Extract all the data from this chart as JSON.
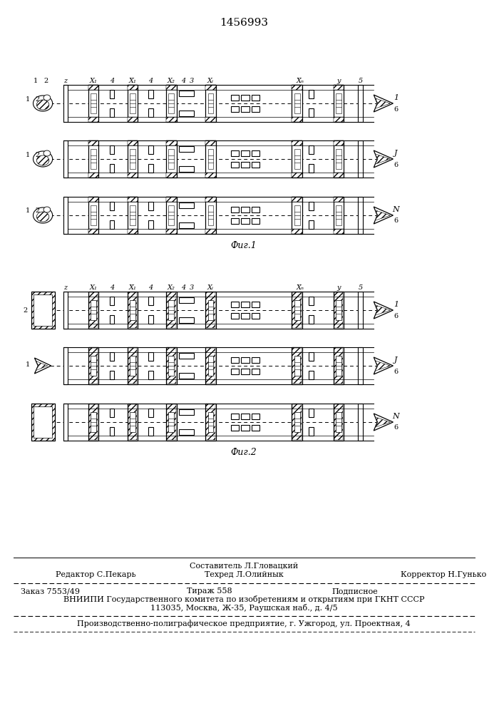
{
  "title": "1456993",
  "fig1_label": "Фиг.1",
  "fig2_label": "Фиг.2",
  "footer_col1_top": "Редактор С.Пекарь",
  "footer_col2_row1": "Составитель Л.Гловацкий",
  "footer_col2_row2": "Техред Л.Олийнык",
  "footer_col3_top": "Корректор Н.Гунько",
  "footer_order": "Заказ 7553/49",
  "footer_tirazh": "Тираж 558",
  "footer_podpis": "Подписное",
  "footer_vnipi": "ВНИИПИ Государственного комитета по изобретениям и открытиям при ГКНТ СССР",
  "footer_addr": "113035, Москва, Ж-35, Раушская наб., д. 4/5",
  "footer_prod": "Производственно-полиграфическое предприятие, г. Ужгород, ул. Проектная, 4",
  "bg_color": "#ffffff"
}
